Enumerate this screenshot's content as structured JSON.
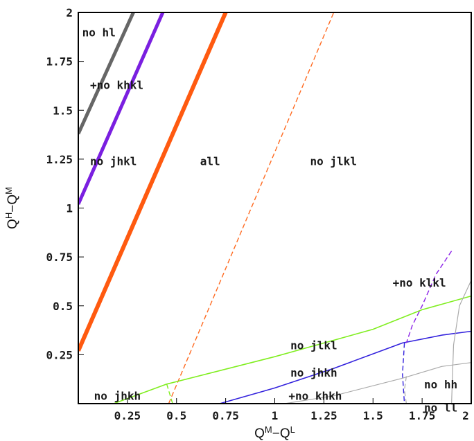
{
  "chart_data": {
    "type": "line",
    "xlabel": "Q^M−Q^L",
    "ylabel": "Q^H−Q^M",
    "xlim": [
      0,
      2
    ],
    "ylim": [
      0,
      2
    ],
    "grid": false,
    "x_ticks": [
      {
        "value": 0.25,
        "label": "0.25"
      },
      {
        "value": 0.5,
        "label": "0.5"
      },
      {
        "value": 0.75,
        "label": "0.75"
      },
      {
        "value": 1,
        "label": "1"
      },
      {
        "value": 1.25,
        "label": "1.25"
      },
      {
        "value": 1.5,
        "label": "1.5"
      },
      {
        "value": 1.75,
        "label": "1.75"
      },
      {
        "value": 2,
        "label": "2"
      }
    ],
    "y_ticks": [
      {
        "value": 0.25,
        "label": "0.25"
      },
      {
        "value": 0.5,
        "label": "0.5"
      },
      {
        "value": 0.75,
        "label": "0.75"
      },
      {
        "value": 1,
        "label": "1"
      },
      {
        "value": 1.25,
        "label": "1.25"
      },
      {
        "value": 1.5,
        "label": "1.5"
      },
      {
        "value": 1.75,
        "label": "1.75"
      },
      {
        "value": 2,
        "label": "2"
      }
    ],
    "series": [
      {
        "color": "#666666",
        "style": "solid",
        "width": 5,
        "x": [
          0,
          0.28
        ],
        "y": [
          1.38,
          2.0
        ]
      },
      {
        "color": "#7a1fe0",
        "style": "solid",
        "width": 5,
        "x": [
          0,
          0.43
        ],
        "y": [
          1.02,
          2.0
        ]
      },
      {
        "color": "#ff5a10",
        "style": "solid",
        "width": 6,
        "x": [
          0,
          0.75
        ],
        "y": [
          0.27,
          2.0
        ]
      },
      {
        "color": "#ff6a20",
        "style": "dashed",
        "width": 1.4,
        "x": [
          0.46,
          1.3
        ],
        "y": [
          0.0,
          2.0
        ]
      },
      {
        "color": "#80ee20",
        "style": "solid",
        "width": 1.6,
        "x": [
          0.18,
          0.45,
          1.0,
          1.5,
          1.75,
          2.0
        ],
        "y": [
          0.0,
          0.1,
          0.24,
          0.38,
          0.48,
          0.55
        ]
      },
      {
        "color": "#80ee20",
        "style": "dashed",
        "width": 1.4,
        "x": [
          0.45,
          0.48
        ],
        "y": [
          0.1,
          0.0
        ]
      },
      {
        "color": "#3322dd",
        "style": "solid",
        "width": 1.6,
        "x": [
          0.72,
          1.0,
          1.3,
          1.65,
          1.85,
          2.0
        ],
        "y": [
          0.0,
          0.08,
          0.18,
          0.31,
          0.35,
          0.37
        ]
      },
      {
        "color": "#3322dd",
        "style": "dashed",
        "width": 1.4,
        "x": [
          1.66,
          1.65,
          1.66
        ],
        "y": [
          0.31,
          0.15,
          0.0
        ]
      },
      {
        "color": "#8a20e8",
        "style": "dashed",
        "width": 1.4,
        "x": [
          1.9,
          1.82,
          1.75,
          1.7,
          1.67
        ],
        "y": [
          0.78,
          0.66,
          0.5,
          0.4,
          0.31
        ]
      },
      {
        "color": "#aaaaaa",
        "style": "solid",
        "width": 1.2,
        "x": [
          1.05,
          1.3,
          1.65,
          1.85,
          2.0
        ],
        "y": [
          0.0,
          0.04,
          0.13,
          0.19,
          0.21
        ]
      },
      {
        "color": "#aaaaaa",
        "style": "dashed",
        "width": 1.2,
        "x": [
          1.67,
          1.66,
          1.67
        ],
        "y": [
          0.14,
          0.07,
          0.0
        ]
      },
      {
        "color": "#aaaaaa",
        "style": "solid",
        "width": 1.2,
        "x": [
          2.0,
          1.94,
          1.91,
          1.9
        ],
        "y": [
          0.63,
          0.5,
          0.3,
          0.0
        ]
      }
    ],
    "annotations": [
      {
        "text": "no hl",
        "x": 0.02,
        "y": 1.9
      },
      {
        "text": "+no khkl",
        "x": 0.06,
        "y": 1.63
      },
      {
        "text": "no jhkl",
        "x": 0.06,
        "y": 1.24
      },
      {
        "text": "all",
        "x": 0.62,
        "y": 1.24
      },
      {
        "text": "no jlkl",
        "x": 1.18,
        "y": 1.24
      },
      {
        "text": "+no klkl",
        "x": 1.6,
        "y": 0.62
      },
      {
        "text": "no jlkl",
        "x": 1.08,
        "y": 0.3
      },
      {
        "text": "no jhkh",
        "x": 1.08,
        "y": 0.16
      },
      {
        "text": "+no khkh",
        "x": 1.07,
        "y": 0.04
      },
      {
        "text": "no jhkh",
        "x": 0.08,
        "y": 0.04
      },
      {
        "text": "no hh",
        "x": 1.76,
        "y": 0.1
      },
      {
        "text": "no ll",
        "x": 1.76,
        "y": -0.02
      }
    ]
  }
}
